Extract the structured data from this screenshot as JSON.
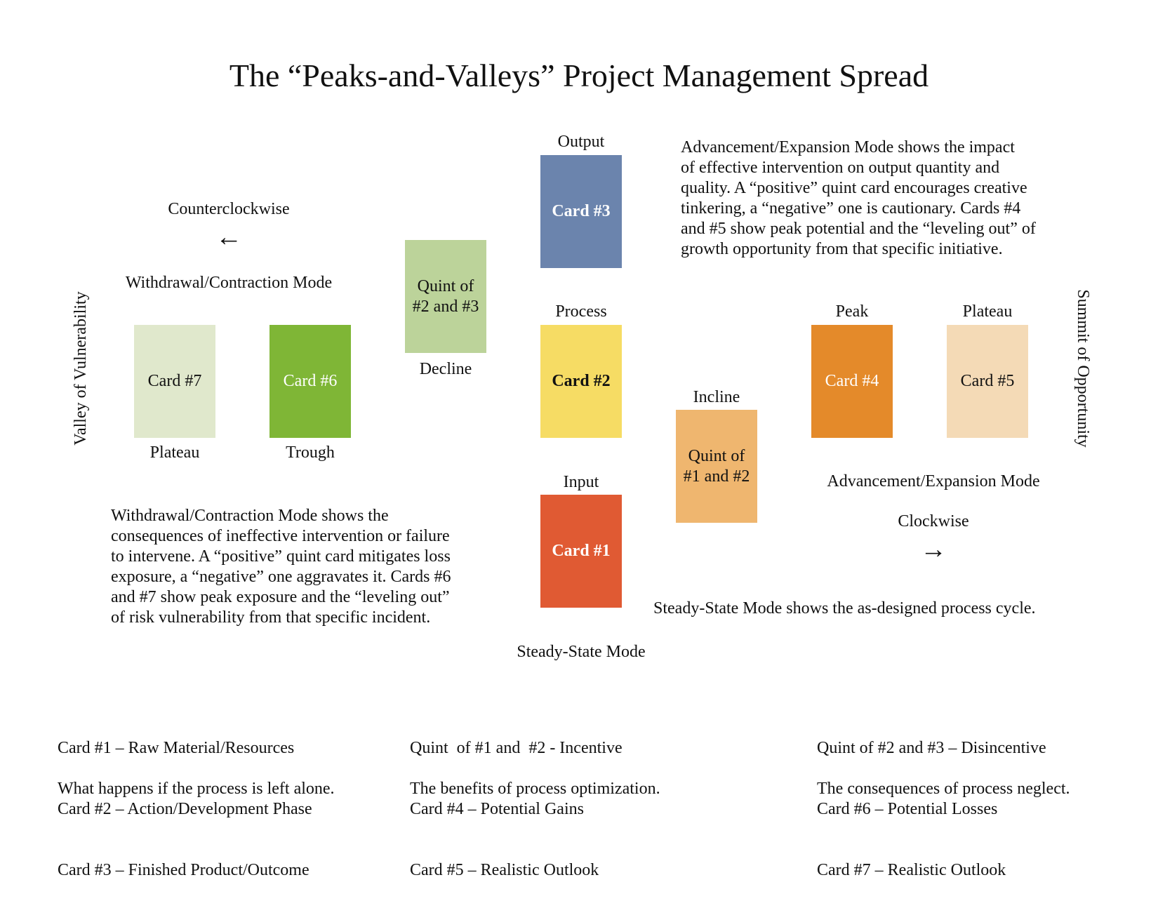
{
  "title": "The “Peaks-and-Valleys” Project Management Spread",
  "colors": {
    "card1": "#e05a33",
    "card2": "#f6dc64",
    "card3": "#6b84ad",
    "card4": "#e48a2a",
    "card5": "#f4dab6",
    "card6": "#7fb636",
    "card7": "#e0e8cc",
    "quint12": "#efb66f",
    "quint23": "#bcd39a"
  },
  "cards": {
    "card1": "Card #1",
    "card2": "Card #2",
    "card3": "Card #3",
    "card4": "Card #4",
    "card5": "Card #5",
    "card6": "Card #6",
    "card7": "Card #7",
    "quint12": [
      "Quint of",
      "#1 and #2"
    ],
    "quint23": [
      "Quint of",
      "#2 and #3"
    ]
  },
  "labels": {
    "output": "Output",
    "process": "Process",
    "input": "Input",
    "decline": "Decline",
    "incline": "Incline",
    "peak": "Peak",
    "plateau_right": "Plateau",
    "plateau_left": "Plateau",
    "trough": "Trough",
    "counterclockwise": "Counterclockwise",
    "clockwise": "Clockwise",
    "left_arrow": "←",
    "right_arrow": "→",
    "withdrawal_mode": "Withdrawal/Contraction Mode",
    "advancement_mode": "Advancement/Expansion Mode",
    "steady_state_mode": "Steady-State Mode",
    "valley": "Valley of Vulnerability",
    "summit": "Summit of Opportunity"
  },
  "paragraphs": {
    "advancement": [
      " Advancement/Expansion Mode shows the impact",
      "of effective intervention on output quantity and",
      "quality. A “positive” quint card encourages creative",
      "tinkering, a “negative” one is cautionary. Cards #4",
      "and #5 show peak potential and the “leveling out” of",
      "growth opportunity from that specific initiative."
    ],
    "withdrawal": [
      "Withdrawal/Contraction Mode shows the",
      "consequences of ineffective intervention or failure",
      "to intervene. A “positive” quint card mitigates loss",
      "exposure, a “negative” one aggravates it. Cards #6",
      "and #7 show peak exposure and the “leveling out”",
      "of risk vulnerability from that specific incident."
    ],
    "steady": "Steady-State Mode shows the as-designed process cycle."
  },
  "legend": {
    "col1": [
      "Card #1 – Raw Material/Resources",
      "Card #2 – Action/Development Phase",
      "Card #3 – Finished Product/Outcome"
    ],
    "col1_note": "What happens if the process is left alone.",
    "col2": [
      "Quint  of #1 and  #2 - Incentive",
      "Card #4 – Potential Gains",
      "Card #5 – Realistic Outlook"
    ],
    "col2_note": "The benefits of process optimization.",
    "col3": [
      "Quint of #2 and #3 – Disincentive",
      "Card #6 – Potential Losses",
      "Card #7 – Realistic Outlook"
    ],
    "col3_note": "The consequences of process neglect."
  }
}
